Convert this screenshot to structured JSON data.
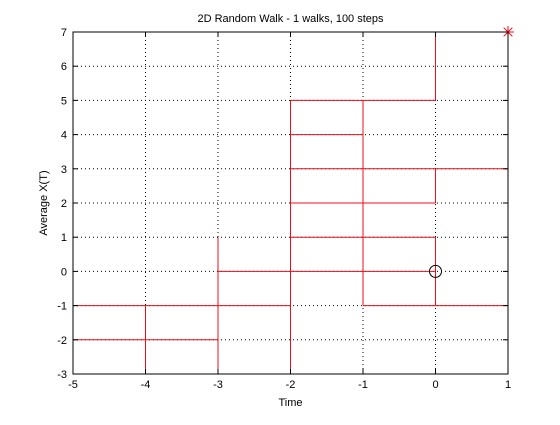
{
  "chart_data": {
    "type": "line",
    "title": "2D Random Walk - 1 walks, 100 steps",
    "xlabel": "Time",
    "ylabel": "Average X(T)",
    "xlim": [
      -5,
      1
    ],
    "ylim": [
      -3,
      7
    ],
    "xticks": [
      -5,
      -4,
      -3,
      -2,
      -1,
      0,
      1
    ],
    "yticks": [
      -3,
      -2,
      -1,
      0,
      1,
      2,
      3,
      4,
      5,
      6,
      7
    ],
    "xtick_labels": [
      "-5",
      "-4",
      "-3",
      "-2",
      "-1",
      "0",
      "1"
    ],
    "ytick_labels": [
      "-3",
      "-2",
      "-1",
      "0",
      "1",
      "2",
      "3",
      "4",
      "5",
      "6",
      "7"
    ],
    "grid": true,
    "grid_style": "dotted",
    "box": true,
    "line_color": "#e8101a",
    "marker_color": "#000000",
    "end_marker_color": "#e8101a",
    "series": [
      {
        "segments": [
          [
            [
              -5,
              -1
            ],
            [
              -2,
              -1
            ]
          ],
          [
            [
              -5,
              -2
            ],
            [
              -3,
              -2
            ]
          ],
          [
            [
              -4,
              -1
            ],
            [
              -4,
              -3
            ]
          ],
          [
            [
              -4,
              -3
            ],
            [
              -3,
              -3
            ]
          ],
          [
            [
              -3,
              -3
            ],
            [
              -3,
              1
            ]
          ],
          [
            [
              -3,
              0
            ],
            [
              0,
              0
            ]
          ],
          [
            [
              -2,
              -3
            ],
            [
              -2,
              5
            ]
          ],
          [
            [
              -2,
              5
            ],
            [
              0,
              5
            ]
          ],
          [
            [
              -2,
              4
            ],
            [
              -1,
              4
            ]
          ],
          [
            [
              -2,
              3
            ],
            [
              1,
              3
            ]
          ],
          [
            [
              -2,
              2
            ],
            [
              0,
              2
            ]
          ],
          [
            [
              -2,
              1
            ],
            [
              0,
              1
            ]
          ],
          [
            [
              -1,
              5
            ],
            [
              -1,
              -1
            ]
          ],
          [
            [
              -1,
              -1
            ],
            [
              1,
              -1
            ]
          ],
          [
            [
              0,
              7
            ],
            [
              0,
              5
            ]
          ],
          [
            [
              0,
              3
            ],
            [
              0,
              2
            ]
          ],
          [
            [
              0,
              1
            ],
            [
              0,
              0
            ]
          ],
          [
            [
              0,
              0
            ],
            [
              0,
              -1
            ]
          ]
        ]
      }
    ],
    "markers": [
      {
        "shape": "circle",
        "x": 0,
        "y": 0,
        "color": "#000000"
      },
      {
        "shape": "asterisk",
        "x": 1,
        "y": 7,
        "color": "#e8101a"
      }
    ]
  }
}
